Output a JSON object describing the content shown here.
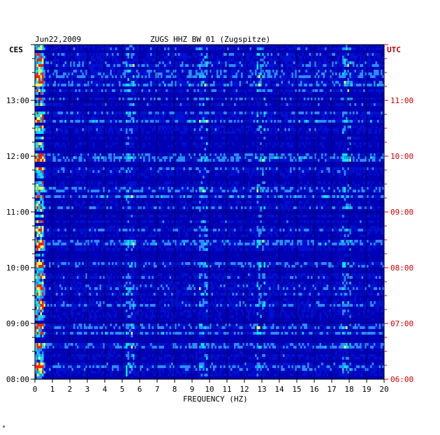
{
  "chart_data": {
    "type": "heatmap",
    "title": "ZUGS HHZ BW 01 (Zugspitze)",
    "date": "Jun22,2009",
    "left_zone": "CES",
    "right_zone": "UTC",
    "xlabel": "FREQUENCY (HZ)",
    "xlim": [
      0,
      20
    ],
    "x_ticks": [
      "0",
      "1",
      "2",
      "3",
      "4",
      "5",
      "6",
      "7",
      "8",
      "9",
      "10",
      "11",
      "12",
      "13",
      "14",
      "15",
      "16",
      "17",
      "18",
      "19",
      "20"
    ],
    "y_ticks_left": [
      "13:00",
      "12:00",
      "11:00",
      "10:00",
      "09:00",
      "08:00"
    ],
    "y_ticks_right": [
      "11:00",
      "10:00",
      "09:00",
      "08:00",
      "07:00",
      "06:00"
    ],
    "y_range_local": [
      "08:00",
      "13:50"
    ],
    "colors": {
      "background": "#0000b4",
      "low": "#0010d0",
      "mid": "#2b8cff",
      "high": "#00e8ff",
      "peak": "#ffff40",
      "spike": "#ff2000",
      "grid": "#000000",
      "utc_text": "#cc0000",
      "left_text": "#000000"
    },
    "energy_bands_hz": [
      0.3,
      5.4,
      9.6,
      12.9,
      17.8
    ],
    "corner_mark": "*"
  }
}
